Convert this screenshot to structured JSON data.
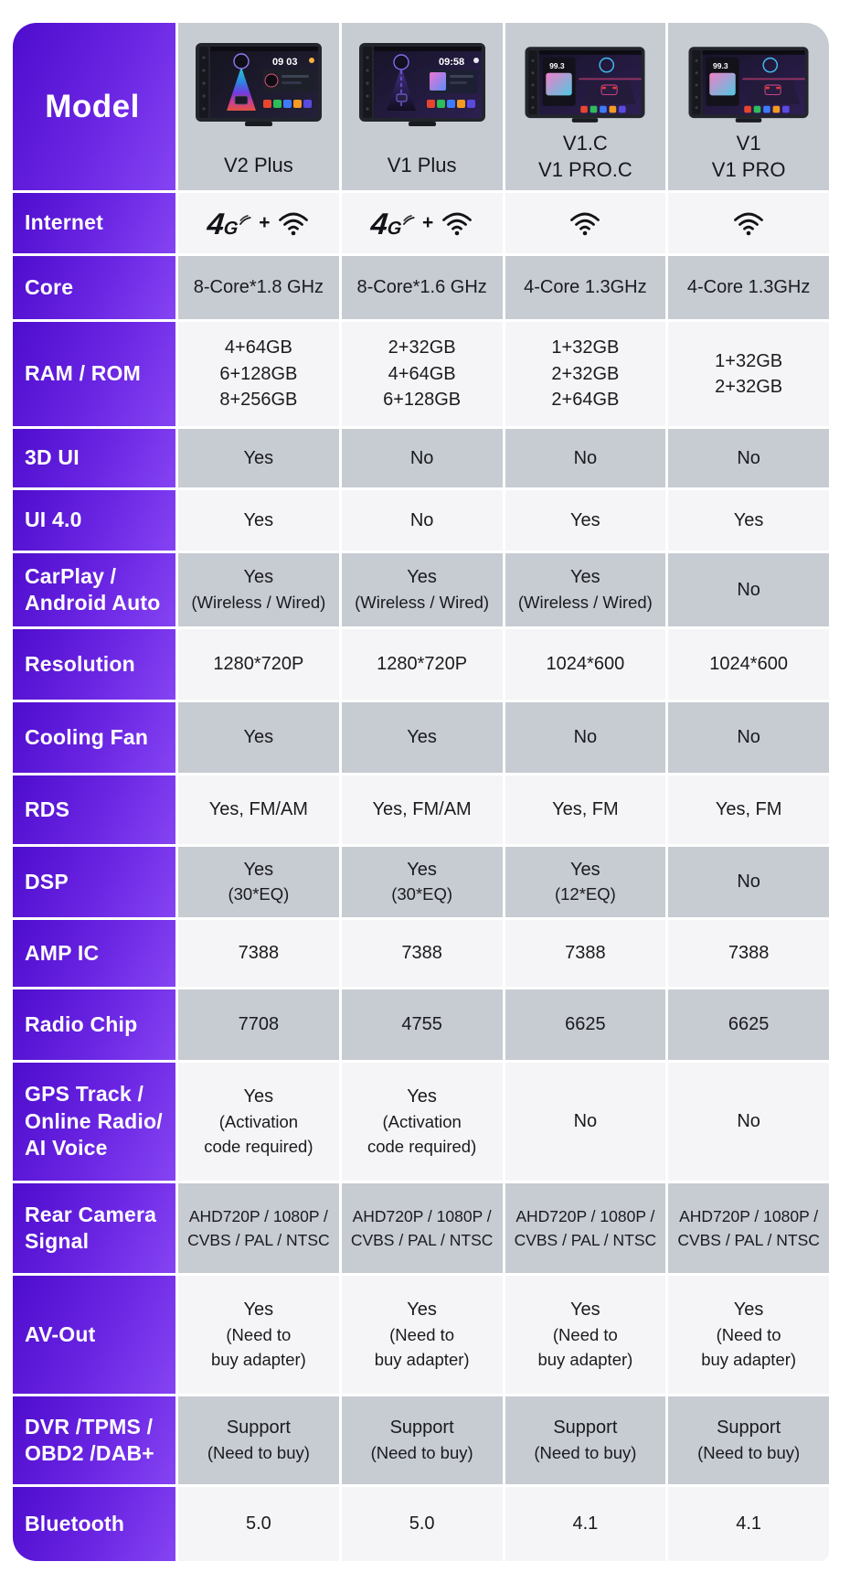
{
  "colors": {
    "purple_dark": "#4e0ccd",
    "purple_light": "#8544f3",
    "row_gray": "#c7cbd2",
    "row_light": "#f5f5f7",
    "text_dark": "#1a1b1f",
    "text_white": "#ffffff"
  },
  "table": {
    "corner_label": "Model",
    "products": [
      {
        "name_lines": [
          "V2 Plus"
        ],
        "screen_label": "09 03"
      },
      {
        "name_lines": [
          "V1 Plus"
        ],
        "screen_label": "09:58"
      },
      {
        "name_lines": [
          "V1.C",
          "V1 PRO.C"
        ],
        "screen_label": "99.3"
      },
      {
        "name_lines": [
          "V1",
          "V1 PRO"
        ],
        "screen_label": "99.3"
      }
    ],
    "rows": [
      {
        "label_lines": [
          "Internet"
        ],
        "type": "icons",
        "values": [
          [
            "4g",
            "wifi"
          ],
          [
            "4g",
            "wifi"
          ],
          [
            "wifi"
          ],
          [
            "wifi"
          ]
        ]
      },
      {
        "label_lines": [
          "Core"
        ],
        "values": [
          [
            "8-Core*1.8 GHz"
          ],
          [
            "8-Core*1.6 GHz"
          ],
          [
            "4-Core 1.3GHz"
          ],
          [
            "4-Core 1.3GHz"
          ]
        ]
      },
      {
        "label_lines": [
          "RAM / ROM"
        ],
        "values": [
          [
            "4+64GB",
            "6+128GB",
            "8+256GB"
          ],
          [
            "2+32GB",
            "4+64GB",
            "6+128GB"
          ],
          [
            "1+32GB",
            "2+32GB",
            "2+64GB"
          ],
          [
            "1+32GB",
            "2+32GB"
          ]
        ]
      },
      {
        "label_lines": [
          "3D UI"
        ],
        "values": [
          [
            "Yes"
          ],
          [
            "No"
          ],
          [
            "No"
          ],
          [
            "No"
          ]
        ]
      },
      {
        "label_lines": [
          "UI 4.0"
        ],
        "values": [
          [
            "Yes"
          ],
          [
            "No"
          ],
          [
            "Yes"
          ],
          [
            "Yes"
          ]
        ]
      },
      {
        "label_lines": [
          "CarPlay /",
          "Android Auto"
        ],
        "values": [
          [
            "Yes",
            "(Wireless / Wired)"
          ],
          [
            "Yes",
            "(Wireless / Wired)"
          ],
          [
            "Yes",
            "(Wireless / Wired)"
          ],
          [
            "No"
          ]
        ]
      },
      {
        "label_lines": [
          "Resolution"
        ],
        "values": [
          [
            "1280*720P"
          ],
          [
            "1280*720P"
          ],
          [
            "1024*600"
          ],
          [
            "1024*600"
          ]
        ]
      },
      {
        "label_lines": [
          "Cooling Fan"
        ],
        "values": [
          [
            "Yes"
          ],
          [
            "Yes"
          ],
          [
            "No"
          ],
          [
            "No"
          ]
        ]
      },
      {
        "label_lines": [
          "RDS"
        ],
        "values": [
          [
            "Yes, FM/AM"
          ],
          [
            "Yes, FM/AM"
          ],
          [
            "Yes, FM"
          ],
          [
            "Yes, FM"
          ]
        ]
      },
      {
        "label_lines": [
          "DSP"
        ],
        "values": [
          [
            "Yes",
            "(30*EQ)"
          ],
          [
            "Yes",
            "(30*EQ)"
          ],
          [
            "Yes",
            "(12*EQ)"
          ],
          [
            "No"
          ]
        ]
      },
      {
        "label_lines": [
          "AMP IC"
        ],
        "values": [
          [
            "7388"
          ],
          [
            "7388"
          ],
          [
            "7388"
          ],
          [
            "7388"
          ]
        ]
      },
      {
        "label_lines": [
          "Radio Chip"
        ],
        "values": [
          [
            "7708"
          ],
          [
            "4755"
          ],
          [
            "6625"
          ],
          [
            "6625"
          ]
        ]
      },
      {
        "label_lines": [
          "GPS Track /",
          "Online Radio/",
          "AI Voice"
        ],
        "values": [
          [
            "Yes",
            "(Activation",
            "code required)"
          ],
          [
            "Yes",
            "(Activation",
            "code required)"
          ],
          [
            "No"
          ],
          [
            "No"
          ]
        ]
      },
      {
        "label_lines": [
          "Rear Camera",
          "Signal"
        ],
        "values": [
          [
            "AHD720P / 1080P /",
            "CVBS / PAL / NTSC"
          ],
          [
            "AHD720P / 1080P /",
            "CVBS / PAL / NTSC"
          ],
          [
            "AHD720P / 1080P /",
            "CVBS / PAL / NTSC"
          ],
          [
            "AHD720P / 1080P /",
            "CVBS / PAL / NTSC"
          ]
        ]
      },
      {
        "label_lines": [
          "AV-Out"
        ],
        "values": [
          [
            "Yes",
            "(Need to",
            "buy adapter)"
          ],
          [
            "Yes",
            "(Need to",
            "buy adapter)"
          ],
          [
            "Yes",
            "(Need to",
            "buy adapter)"
          ],
          [
            "Yes",
            "(Need to",
            "buy adapter)"
          ]
        ]
      },
      {
        "label_lines": [
          "DVR /TPMS /",
          "OBD2 /DAB+"
        ],
        "values": [
          [
            "Support",
            "(Need to buy)"
          ],
          [
            "Support",
            "(Need to buy)"
          ],
          [
            "Support",
            "(Need to buy)"
          ],
          [
            "Support",
            "(Need to buy)"
          ]
        ]
      },
      {
        "label_lines": [
          "Bluetooth"
        ],
        "values": [
          [
            "5.0"
          ],
          [
            "5.0"
          ],
          [
            "4.1"
          ],
          [
            "4.1"
          ]
        ]
      }
    ]
  }
}
